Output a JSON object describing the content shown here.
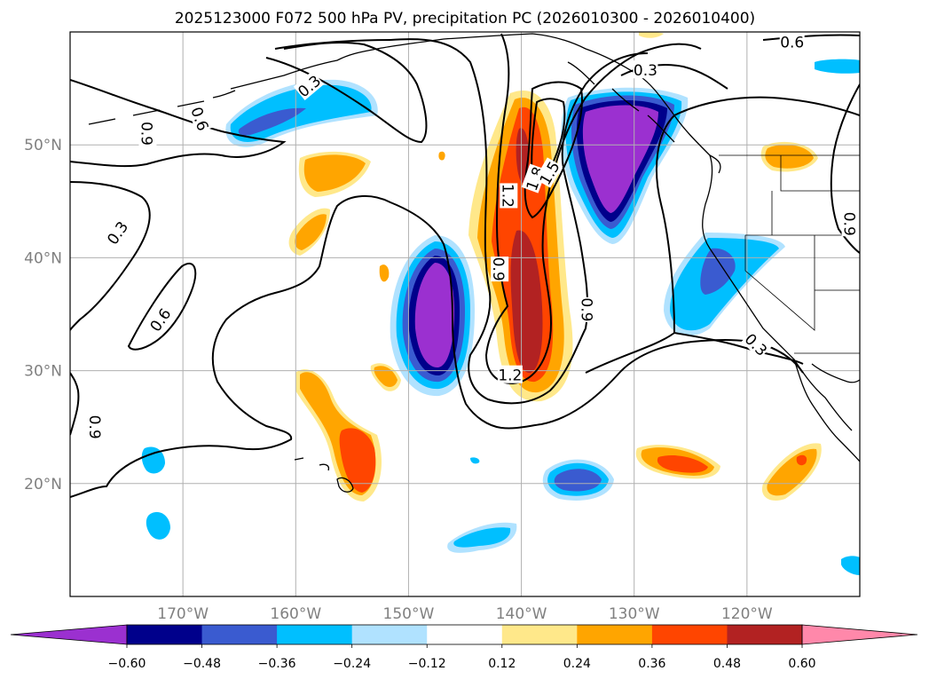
{
  "chart_data": {
    "type": "contour-map",
    "title": "2025123000 F072 500 hPa PV, precipitation PC (2026010300 - 2026010400)",
    "projection": "PlateCarree",
    "lon_range": [
      180,
      -110
    ],
    "lat_range": [
      10,
      60
    ],
    "grid": true,
    "x_ticks": [
      {
        "lon": -170,
        "label": "170°W"
      },
      {
        "lon": -160,
        "label": "160°W"
      },
      {
        "lon": -150,
        "label": "150°W"
      },
      {
        "lon": -140,
        "label": "140°W"
      },
      {
        "lon": -130,
        "label": "130°W"
      },
      {
        "lon": -120,
        "label": "120°W"
      }
    ],
    "y_ticks": [
      {
        "lat": 20,
        "label": "20°N"
      },
      {
        "lat": 30,
        "label": "30°N"
      },
      {
        "lat": 40,
        "label": "40°N"
      },
      {
        "lat": 50,
        "label": "50°N"
      }
    ],
    "shaded_field": {
      "name": "precipitation PC",
      "levels": [
        -0.6,
        -0.48,
        -0.36,
        -0.24,
        -0.12,
        0.12,
        0.24,
        0.36,
        0.48,
        0.6
      ],
      "level_labels": [
        "−0.60",
        "−0.48",
        "−0.36",
        "−0.24",
        "−0.12",
        "0.12",
        "0.24",
        "0.36",
        "0.48",
        "0.60"
      ],
      "colors": [
        "#9b30d0",
        "#00008b",
        "#3a5bd0",
        "#00bfff",
        "#b0e2ff",
        "#ffffff",
        "#ffe88a",
        "#ffa500",
        "#ff4500",
        "#b22222",
        "#ff88aa"
      ],
      "extend": "both"
    },
    "contour_field": {
      "name": "500 hPa PV",
      "contour_labels": [
        "0.3",
        "0.6",
        "0.9",
        "1.2",
        "1.5",
        "1.8"
      ]
    },
    "contour_label_marks": [
      {
        "text": "0.3",
        "lon": -158.8,
        "lat": 55.2,
        "rot": -40
      },
      {
        "text": "0.6",
        "lon": -168.5,
        "lat": 52.3,
        "rot": 70
      },
      {
        "text": "0.9",
        "lon": -173.2,
        "lat": 51.0,
        "rot": 90
      },
      {
        "text": "0.3",
        "lon": -175.8,
        "lat": 42.2,
        "rot": -55
      },
      {
        "text": "0.6",
        "lon": -172.0,
        "lat": 34.5,
        "rot": -55
      },
      {
        "text": "0.9",
        "lon": -177.8,
        "lat": 25.0,
        "rot": 90
      },
      {
        "text": "0.9",
        "lon": -142.0,
        "lat": 39.0,
        "rot": 90
      },
      {
        "text": "1.2",
        "lon": -141.2,
        "lat": 45.5,
        "rot": 90
      },
      {
        "text": "1.8",
        "lon": -138.8,
        "lat": 47.0,
        "rot": -70
      },
      {
        "text": "1.5",
        "lon": -137.5,
        "lat": 47.5,
        "rot": -60
      },
      {
        "text": "1.2",
        "lon": -141.0,
        "lat": 29.6,
        "rot": 0
      },
      {
        "text": "0.9",
        "lon": -134.2,
        "lat": 35.4,
        "rot": 90
      },
      {
        "text": "0.3",
        "lon": -129.0,
        "lat": 56.6,
        "rot": 0
      },
      {
        "text": "0.6",
        "lon": -116.0,
        "lat": 59.1,
        "rot": 0
      },
      {
        "text": "0.9",
        "lon": -110.9,
        "lat": 43.0,
        "rot": 90
      },
      {
        "text": "0.3",
        "lon": -119.2,
        "lat": 32.3,
        "rot": 45
      }
    ]
  }
}
